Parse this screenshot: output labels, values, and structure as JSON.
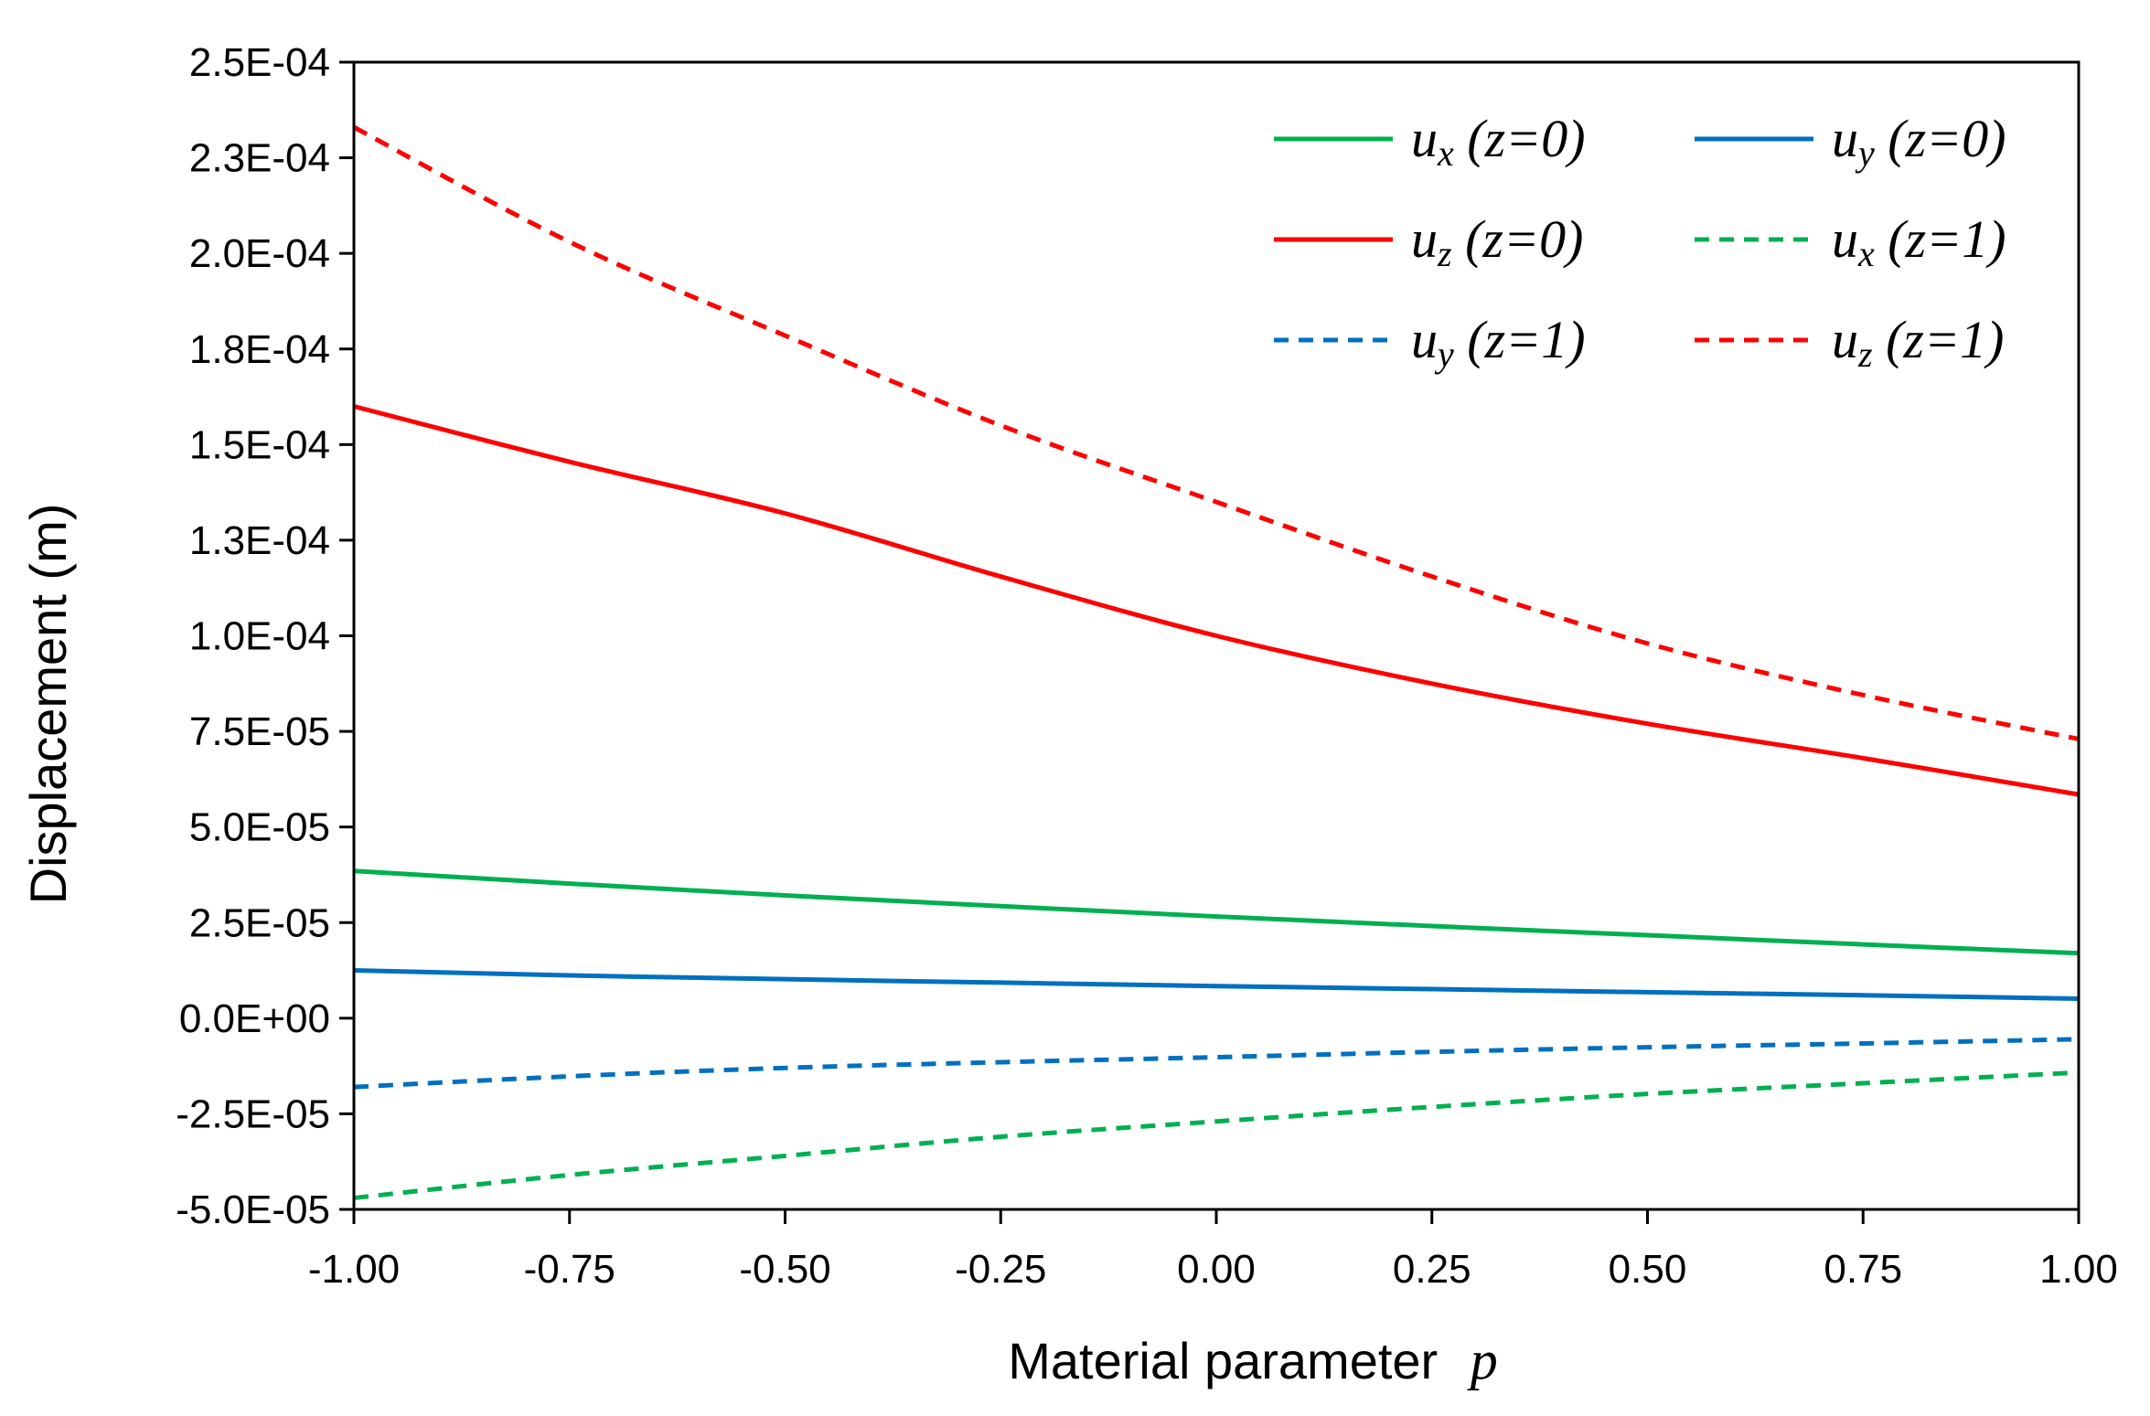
{
  "chart_data": {
    "type": "line",
    "title": "",
    "xlabel": "Material parameter",
    "xlabel_var": "p",
    "ylabel": "Displacement (m)",
    "xlim": [
      -1.0,
      1.0
    ],
    "ylim": [
      -5e-05,
      0.00025
    ],
    "x_ticks": [
      -1.0,
      -0.75,
      -0.5,
      -0.25,
      0.0,
      0.25,
      0.5,
      0.75,
      1.0
    ],
    "x_tick_labels": [
      "-1.00",
      "-0.75",
      "-0.50",
      "-0.25",
      "0.00",
      "0.25",
      "0.50",
      "0.75",
      "1.00"
    ],
    "y_ticks": [
      -5e-05,
      -2.5e-05,
      0.0,
      2.5e-05,
      5e-05,
      7.5e-05,
      0.0001,
      0.000125,
      0.00015,
      0.000175,
      0.0002,
      0.000225,
      0.00025
    ],
    "y_tick_labels": [
      "-5.0E-05",
      "-2.5E-05",
      "0.0E+00",
      "2.5E-05",
      "5.0E-05",
      "7.5E-05",
      "1.0E-04",
      "1.3E-04",
      "1.5E-04",
      "1.8E-04",
      "2.0E-04",
      "2.3E-04",
      "2.5E-04"
    ],
    "grid": false,
    "legend_position": "top-right",
    "x": [
      -1.0,
      -0.75,
      -0.5,
      -0.25,
      0.0,
      0.25,
      0.5,
      0.75,
      1.0
    ],
    "series": [
      {
        "name": "ux (z=0)",
        "base": "u",
        "sub": "x",
        "cond": " (z=0)",
        "color": "#00b050",
        "dashed": false,
        "values": [
          3.85e-05,
          3.52e-05,
          3.21e-05,
          2.93e-05,
          2.66e-05,
          2.41e-05,
          2.17e-05,
          1.93e-05,
          1.7e-05
        ]
      },
      {
        "name": "uy (z=0)",
        "base": "u",
        "sub": "y",
        "cond": " (z=0)",
        "color": "#0070c0",
        "dashed": false,
        "values": [
          1.25e-05,
          1.12e-05,
          1.02e-05,
          9.3e-06,
          8.4e-06,
          7.6e-06,
          6.8e-06,
          6e-06,
          5.1e-06
        ]
      },
      {
        "name": "uz (z=0)",
        "base": "u",
        "sub": "z",
        "cond": " (z=0)",
        "color": "#ff0000",
        "dashed": false,
        "values": [
          0.00016,
          0.0001455,
          0.000132,
          0.0001155,
          0.0001,
          8.75e-05,
          7.7e-05,
          6.8e-05,
          5.85e-05
        ]
      },
      {
        "name": "ux (z=1)",
        "base": "u",
        "sub": "x",
        "cond": " (z=1)",
        "color": "#00b050",
        "dashed": true,
        "values": [
          -4.7e-05,
          -4.1e-05,
          -3.6e-05,
          -3.1e-05,
          -2.7e-05,
          -2.32e-05,
          -1.98e-05,
          -1.7e-05,
          -1.42e-05
        ]
      },
      {
        "name": "uy (z=1)",
        "base": "u",
        "sub": "y",
        "cond": " (z=1)",
        "color": "#0070c0",
        "dashed": true,
        "values": [
          -1.8e-05,
          -1.52e-05,
          -1.3e-05,
          -1.15e-05,
          -1.02e-05,
          -8.8e-06,
          -7.6e-06,
          -6.6e-06,
          -5.5e-06
        ]
      },
      {
        "name": "uz (z=1)",
        "base": "u",
        "sub": "z",
        "cond": " (z=1)",
        "color": "#ff0000",
        "dashed": true,
        "values": [
          0.000233,
          0.000203,
          0.0001785,
          0.000155,
          0.000135,
          0.0001155,
          9.8e-05,
          8.45e-05,
          7.3e-05
        ]
      }
    ]
  }
}
